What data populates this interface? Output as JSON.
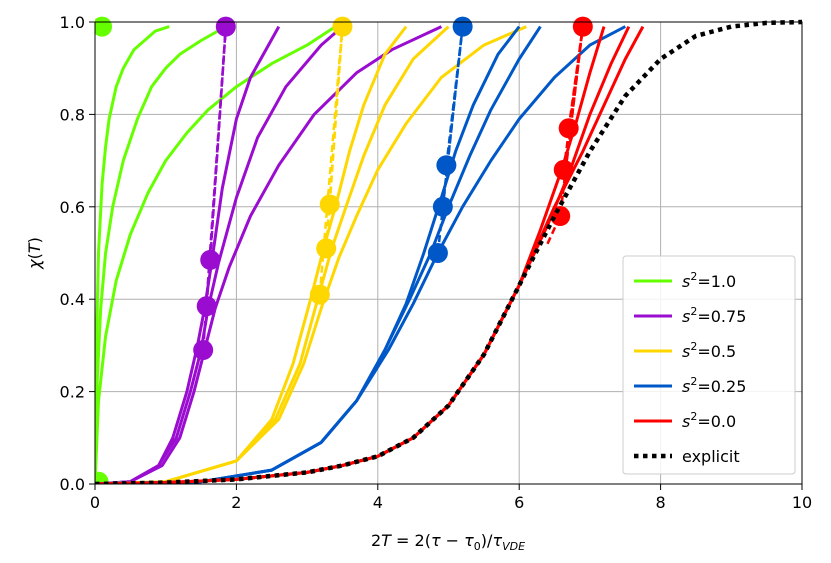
{
  "chart_data": {
    "type": "line",
    "title": "",
    "xlabel": "2T = 2(τ − τ0)/τVDE",
    "ylabel": "χ(T)",
    "xlim": [
      0,
      10
    ],
    "ylim": [
      0,
      1
    ],
    "x_ticks": [
      0,
      2,
      4,
      6,
      8,
      10
    ],
    "y_ticks": [
      0.0,
      0.2,
      0.4,
      0.6,
      0.8,
      1.0
    ],
    "x_tick_labels": [
      "0",
      "2",
      "4",
      "6",
      "8",
      "10"
    ],
    "y_tick_labels": [
      "0.0",
      "0.2",
      "0.4",
      "0.6",
      "0.8",
      "1.0"
    ],
    "grid": true,
    "legend_position": "lower-right",
    "series": [
      {
        "name": "s²=1.0",
        "legend_base": "s",
        "legend_sup": "2",
        "legend_value": "=1.0",
        "color": "#66ff00",
        "curves": [
          {
            "x": [
              0,
              0.02,
              0.05,
              0.1,
              0.15,
              0.2,
              0.3,
              0.4,
              0.55,
              0.7,
              0.85,
              1.05
            ],
            "y": [
              0,
              0.3,
              0.5,
              0.65,
              0.73,
              0.79,
              0.86,
              0.9,
              0.94,
              0.96,
              0.98,
              0.99
            ]
          },
          {
            "x": [
              0,
              0.03,
              0.08,
              0.15,
              0.25,
              0.4,
              0.6,
              0.8,
              1.0,
              1.2,
              1.5,
              1.85
            ],
            "y": [
              0,
              0.22,
              0.38,
              0.5,
              0.6,
              0.7,
              0.79,
              0.86,
              0.9,
              0.93,
              0.96,
              0.99
            ]
          },
          {
            "x": [
              0,
              0.05,
              0.15,
              0.3,
              0.5,
              0.75,
              1.0,
              1.3,
              1.6,
              2.0,
              2.5,
              3.0,
              3.4
            ],
            "y": [
              0,
              0.18,
              0.32,
              0.44,
              0.54,
              0.63,
              0.7,
              0.76,
              0.81,
              0.86,
              0.91,
              0.95,
              0.99
            ]
          }
        ],
        "markers": [
          {
            "x": 0.1,
            "y": 0.99
          },
          {
            "x": 0.05,
            "y": 0.005
          }
        ],
        "dashed": []
      },
      {
        "name": "s²=0.75",
        "legend_base": "s",
        "legend_sup": "2",
        "legend_value": "=0.75",
        "color": "#9a0ccf",
        "curves": [
          {
            "x": [
              0,
              0.5,
              0.9,
              1.1,
              1.3,
              1.45,
              1.55,
              1.65,
              1.8,
              2.0,
              2.2,
              2.6
            ],
            "y": [
              0,
              0.005,
              0.04,
              0.1,
              0.2,
              0.3,
              0.38,
              0.48,
              0.64,
              0.79,
              0.88,
              0.99
            ]
          },
          {
            "x": [
              0,
              0.5,
              0.9,
              1.15,
              1.35,
              1.5,
              1.6,
              1.75,
              2.0,
              2.3,
              2.7,
              3.2,
              3.5
            ],
            "y": [
              0,
              0.005,
              0.04,
              0.1,
              0.2,
              0.29,
              0.38,
              0.48,
              0.62,
              0.75,
              0.86,
              0.95,
              0.99
            ]
          },
          {
            "x": [
              0,
              0.5,
              0.95,
              1.2,
              1.4,
              1.55,
              1.7,
              1.9,
              2.2,
              2.6,
              3.1,
              3.7,
              4.2,
              4.9
            ],
            "y": [
              0,
              0.005,
              0.04,
              0.1,
              0.2,
              0.29,
              0.38,
              0.47,
              0.58,
              0.69,
              0.8,
              0.89,
              0.94,
              0.99
            ]
          }
        ],
        "markers": [
          {
            "x": 1.85,
            "y": 0.99
          },
          {
            "x": 1.63,
            "y": 0.485
          },
          {
            "x": 1.58,
            "y": 0.385
          },
          {
            "x": 1.53,
            "y": 0.29
          }
        ],
        "dashed": [
          {
            "x": [
              1.63,
              1.85
            ],
            "y": [
              0.485,
              0.99
            ]
          },
          {
            "x": [
              1.58,
              1.85
            ],
            "y": [
              0.385,
              0.99
            ]
          },
          {
            "x": [
              1.53,
              1.85
            ],
            "y": [
              0.29,
              0.99
            ]
          }
        ]
      },
      {
        "name": "s²=0.5",
        "legend_base": "s",
        "legend_sup": "2",
        "legend_value": "=0.5",
        "color": "#ffd700",
        "curves": [
          {
            "x": [
              0,
              1.0,
              2.0,
              2.5,
              2.8,
              3.05,
              3.25,
              3.4,
              3.6,
              3.8,
              4.1,
              4.4
            ],
            "y": [
              0,
              0.005,
              0.05,
              0.14,
              0.26,
              0.4,
              0.52,
              0.6,
              0.72,
              0.82,
              0.93,
              0.99
            ]
          },
          {
            "x": [
              0,
              1.0,
              2.0,
              2.55,
              2.9,
              3.15,
              3.35,
              3.55,
              3.8,
              4.1,
              4.5,
              5.0
            ],
            "y": [
              0,
              0.005,
              0.05,
              0.14,
              0.26,
              0.4,
              0.51,
              0.6,
              0.71,
              0.82,
              0.92,
              0.99
            ]
          },
          {
            "x": [
              0,
              1.0,
              2.0,
              2.6,
              2.95,
              3.2,
              3.45,
              3.7,
              4.0,
              4.4,
              4.9,
              5.5,
              6.1
            ],
            "y": [
              0,
              0.005,
              0.05,
              0.14,
              0.26,
              0.38,
              0.49,
              0.58,
              0.68,
              0.78,
              0.88,
              0.95,
              0.99
            ]
          }
        ],
        "markers": [
          {
            "x": 3.5,
            "y": 0.99
          },
          {
            "x": 3.32,
            "y": 0.605
          },
          {
            "x": 3.27,
            "y": 0.51
          },
          {
            "x": 3.18,
            "y": 0.41
          }
        ],
        "dashed": [
          {
            "x": [
              3.32,
              3.5
            ],
            "y": [
              0.605,
              0.99
            ]
          },
          {
            "x": [
              3.27,
              3.5
            ],
            "y": [
              0.51,
              0.99
            ]
          },
          {
            "x": [
              3.18,
              3.5
            ],
            "y": [
              0.41,
              0.99
            ]
          }
        ]
      },
      {
        "name": "s²=0.25",
        "legend_base": "s",
        "legend_sup": "2",
        "legend_value": "=0.25",
        "color": "#0058c8",
        "curves": [
          {
            "x": [
              0,
              1.5,
              2.5,
              3.2,
              3.7,
              4.1,
              4.4,
              4.65,
              4.9,
              5.1,
              5.35,
              5.7,
              6.0
            ],
            "y": [
              0,
              0.005,
              0.03,
              0.09,
              0.18,
              0.29,
              0.39,
              0.5,
              0.62,
              0.72,
              0.82,
              0.93,
              0.99
            ]
          },
          {
            "x": [
              0,
              1.5,
              2.5,
              3.2,
              3.7,
              4.1,
              4.45,
              4.75,
              5.0,
              5.3,
              5.6,
              6.0,
              6.3
            ],
            "y": [
              0,
              0.005,
              0.03,
              0.09,
              0.18,
              0.29,
              0.4,
              0.5,
              0.6,
              0.71,
              0.81,
              0.92,
              0.99
            ]
          },
          {
            "x": [
              0,
              1.5,
              2.5,
              3.2,
              3.7,
              4.15,
              4.5,
              4.85,
              5.2,
              5.6,
              6.0,
              6.5,
              7.0,
              7.5
            ],
            "y": [
              0,
              0.005,
              0.03,
              0.09,
              0.18,
              0.29,
              0.39,
              0.5,
              0.6,
              0.7,
              0.79,
              0.88,
              0.95,
              0.99
            ]
          }
        ],
        "markers": [
          {
            "x": 5.2,
            "y": 0.99
          },
          {
            "x": 4.97,
            "y": 0.69
          },
          {
            "x": 4.92,
            "y": 0.6
          },
          {
            "x": 4.85,
            "y": 0.5
          }
        ],
        "dashed": [
          {
            "x": [
              4.97,
              5.2
            ],
            "y": [
              0.69,
              0.99
            ]
          },
          {
            "x": [
              4.92,
              5.2
            ],
            "y": [
              0.6,
              0.99
            ]
          },
          {
            "x": [
              4.85,
              5.2
            ],
            "y": [
              0.5,
              0.99
            ]
          }
        ]
      },
      {
        "name": "s²=0.0",
        "legend_base": "s",
        "legend_sup": "2",
        "legend_value": "=0.0",
        "color": "#ff0000",
        "curves": [
          {
            "x": [
              0,
              1.0,
              2.0,
              3.0,
              3.5,
              4.0,
              4.5,
              5.0,
              5.5,
              6.0,
              6.3,
              6.6,
              6.8,
              7.0,
              7.2
            ],
            "y": [
              0,
              0.003,
              0.01,
              0.025,
              0.04,
              0.06,
              0.1,
              0.17,
              0.28,
              0.43,
              0.55,
              0.68,
              0.78,
              0.89,
              0.99
            ]
          },
          {
            "x": [
              0,
              1.0,
              2.0,
              3.0,
              3.5,
              4.0,
              4.5,
              5.0,
              5.5,
              6.0,
              6.4,
              6.7,
              7.0,
              7.3,
              7.55
            ],
            "y": [
              0,
              0.003,
              0.01,
              0.025,
              0.04,
              0.06,
              0.1,
              0.17,
              0.28,
              0.43,
              0.56,
              0.67,
              0.8,
              0.91,
              0.99
            ]
          },
          {
            "x": [
              0,
              1.0,
              2.0,
              3.0,
              3.5,
              4.0,
              4.5,
              5.0,
              5.5,
              6.0,
              6.5,
              6.9,
              7.2,
              7.5,
              7.75
            ],
            "y": [
              0,
              0.003,
              0.01,
              0.025,
              0.04,
              0.06,
              0.1,
              0.17,
              0.28,
              0.43,
              0.6,
              0.72,
              0.82,
              0.92,
              0.99
            ]
          }
        ],
        "markers": [
          {
            "x": 6.9,
            "y": 0.99
          },
          {
            "x": 6.7,
            "y": 0.77
          },
          {
            "x": 6.63,
            "y": 0.68
          },
          {
            "x": 6.58,
            "y": 0.58
          }
        ],
        "dashed": [
          {
            "x": [
              6.7,
              6.9
            ],
            "y": [
              0.77,
              0.99
            ]
          },
          {
            "x": [
              6.63,
              6.9
            ],
            "y": [
              0.68,
              0.99
            ]
          },
          {
            "x": [
              6.58,
              6.9
            ],
            "y": [
              0.58,
              0.99
            ]
          },
          {
            "x": [
              6.4,
              6.58,
              6.9
            ],
            "y": [
              0.52,
              0.58,
              0.99
            ]
          }
        ]
      },
      {
        "name": "explicit",
        "legend_text": "explicit",
        "color": "#000000",
        "style": "dotted",
        "curves": [
          {
            "x": [
              0,
              1.0,
              2.0,
              3.0,
              3.5,
              4.0,
              4.5,
              5.0,
              5.5,
              6.0,
              6.5,
              7.0,
              7.5,
              8.0,
              8.5,
              9.0,
              9.5,
              10.0
            ],
            "y": [
              0,
              0.003,
              0.01,
              0.025,
              0.04,
              0.06,
              0.1,
              0.17,
              0.28,
              0.43,
              0.58,
              0.72,
              0.84,
              0.92,
              0.97,
              0.99,
              0.998,
              1.0
            ]
          }
        ],
        "markers": [],
        "dashed": []
      }
    ]
  }
}
